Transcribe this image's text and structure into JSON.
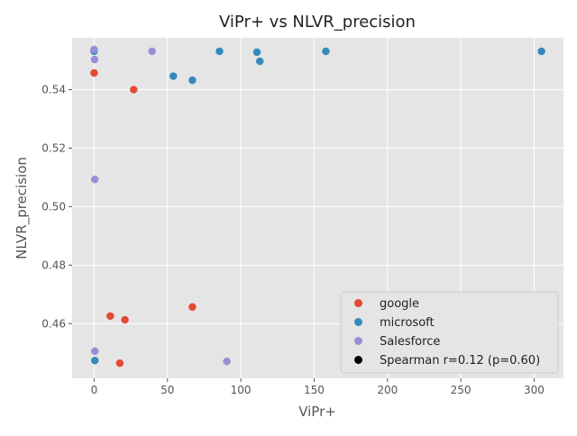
{
  "chart_data": {
    "type": "scatter",
    "title": "ViPr+ vs NLVR_precision",
    "xlabel": "ViPr+",
    "ylabel": "NLVR_precision",
    "xlim": [
      -15,
      320
    ],
    "ylim": [
      0.4413,
      0.5577
    ],
    "xticks": [
      0,
      50,
      100,
      150,
      200,
      250,
      300
    ],
    "yticks": [
      0.46,
      0.48,
      0.5,
      0.52,
      0.54
    ],
    "ytick_labels": [
      "0.46",
      "0.48",
      "0.50",
      "0.52",
      "0.54"
    ],
    "grid": true,
    "legend_position": "lower-right",
    "series": [
      {
        "name": "google",
        "color": "#E24A33",
        "points": [
          [
            0,
            0.5457
          ],
          [
            27,
            0.54
          ],
          [
            67,
            0.4657
          ],
          [
            11,
            0.4626
          ],
          [
            21,
            0.4613
          ],
          [
            17.5,
            0.4465
          ]
        ]
      },
      {
        "name": "microsoft",
        "color": "#348ABD",
        "points": [
          [
            0,
            0.5531
          ],
          [
            85.5,
            0.5531
          ],
          [
            111,
            0.5528
          ],
          [
            113,
            0.5497
          ],
          [
            158,
            0.5531
          ],
          [
            305,
            0.5531
          ],
          [
            54,
            0.5446
          ],
          [
            67,
            0.5432
          ],
          [
            0.5,
            0.4474
          ]
        ]
      },
      {
        "name": "Salesforce",
        "color": "#988ED5",
        "points": [
          [
            0,
            0.5537
          ],
          [
            39.5,
            0.5531
          ],
          [
            0.3,
            0.5503
          ],
          [
            0.5,
            0.5093
          ],
          [
            0.5,
            0.4506
          ],
          [
            90.5,
            0.4471
          ]
        ]
      }
    ],
    "annotation_entry": {
      "name": "Spearman r=0.12 (p=0.60)",
      "color": "#000000"
    }
  }
}
